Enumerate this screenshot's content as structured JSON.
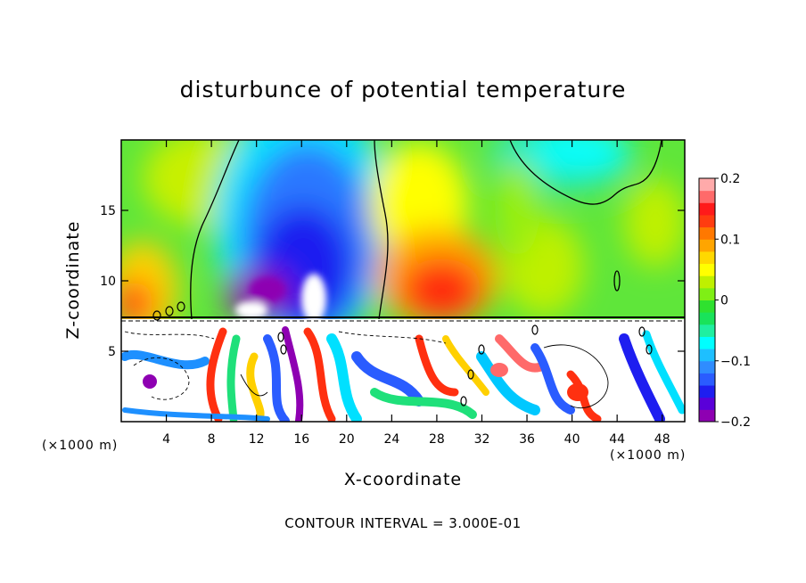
{
  "chart_data": {
    "type": "heatmap",
    "title": "disturbunce of potential temperature",
    "xlabel": "X-coordinate",
    "ylabel": "Z-coordinate",
    "x_unit_label": "(×1000 m)",
    "x_unit_label_right": "(×1000 m)",
    "xlim": [
      0,
      50
    ],
    "ylim": [
      0,
      20
    ],
    "x_ticks": [
      4,
      8,
      12,
      16,
      20,
      24,
      28,
      32,
      36,
      40,
      44,
      48
    ],
    "y_ticks": [
      5,
      10,
      15
    ],
    "colorbar": {
      "range": [
        -0.2,
        0.2
      ],
      "tick_labels": [
        "0.2",
        "0.1",
        "0",
        "−0.1",
        "−0.2"
      ],
      "tick_values": [
        0.2,
        0.1,
        0,
        -0.1,
        -0.2
      ],
      "colors": [
        "#8e00b2",
        "#5a00d9",
        "#1e1ef0",
        "#2a5cff",
        "#2f8cff",
        "#1ebfff",
        "#00ffff",
        "#1fefa0",
        "#19e35a",
        "#2fe12f",
        "#7fef15",
        "#bff000",
        "#ffff00",
        "#ffd800",
        "#ffa500",
        "#ff7800",
        "#ff3c10",
        "#ff1a1a",
        "#ff6a6a",
        "#ffaaaa"
      ]
    },
    "annotation": "CONTOUR INTERVAL = 3.000E-01",
    "features": [
      {
        "x": 17,
        "z": 14,
        "value": -0.17
      },
      {
        "x": 14,
        "z": 10,
        "value": -0.2
      },
      {
        "x": 29,
        "z": 10,
        "value": 0.12
      },
      {
        "x": 2,
        "z": 10,
        "value": 0.09
      },
      {
        "x": 41,
        "z": 19,
        "value": -0.06
      },
      {
        "x": 10,
        "z": 18,
        "value": 0.02
      },
      {
        "x": 47,
        "z": 18,
        "value": -0.02
      }
    ]
  }
}
